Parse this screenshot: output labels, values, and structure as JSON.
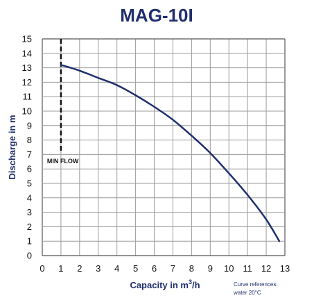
{
  "chart_data": {
    "type": "line",
    "title": "MAG-10I",
    "xlabel": "Capacity in m",
    "xlabel_sup": "3",
    "xlabel_suffix": "/h",
    "ylabel": "Discharge in m",
    "xlim": [
      0,
      13
    ],
    "ylim": [
      0,
      15
    ],
    "xticks": [
      "0",
      "1",
      "2",
      "3",
      "4",
      "5",
      "6",
      "7",
      "8",
      "9",
      "10",
      "11",
      "12",
      "13"
    ],
    "yticks": [
      "0",
      "1",
      "2",
      "3",
      "4",
      "5",
      "6",
      "7",
      "8",
      "9",
      "10",
      "11",
      "12",
      "13",
      "14",
      "15"
    ],
    "grid": true,
    "line_color": "#1f2f6e",
    "series": [
      {
        "x": [
          1,
          2,
          3,
          4,
          5,
          6,
          7,
          8,
          9,
          10,
          11,
          12,
          12.7
        ],
        "y": [
          13.2,
          12.8,
          12.3,
          11.8,
          11.1,
          10.3,
          9.4,
          8.3,
          7.1,
          5.7,
          4.2,
          2.5,
          1.0
        ]
      }
    ],
    "min_flow": {
      "x": 1,
      "label": "MIN FLOW",
      "y_top": 15,
      "y_bottom": 7.2
    },
    "note": [
      "Curve references:",
      "water 20°C"
    ]
  }
}
